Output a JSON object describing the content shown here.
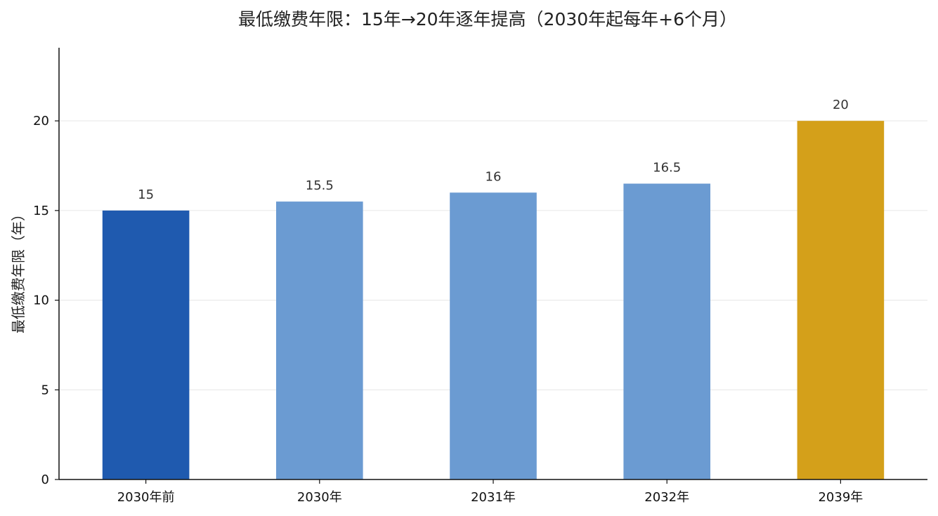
{
  "chart_data": {
    "type": "bar",
    "title": "最低缴费年限：15年→20年逐年提高（2030年起每年+6个月）",
    "xlabel": "",
    "ylabel": "最低缴费年限（年）",
    "categories": [
      "2030年前",
      "2030年",
      "2031年",
      "2032年",
      "2039年"
    ],
    "values": [
      15,
      15.5,
      16,
      16.5,
      20
    ],
    "value_labels": [
      "15",
      "15.5",
      "16",
      "16.5",
      "20"
    ],
    "bar_colors": [
      "#1f5aaf",
      "#6b9bd2",
      "#6b9bd2",
      "#6b9bd2",
      "#d4a01a"
    ],
    "ylim": [
      0,
      24
    ],
    "yticks": [
      0,
      5,
      10,
      15,
      20
    ],
    "grid": "horizontal-light",
    "legend": "none"
  }
}
